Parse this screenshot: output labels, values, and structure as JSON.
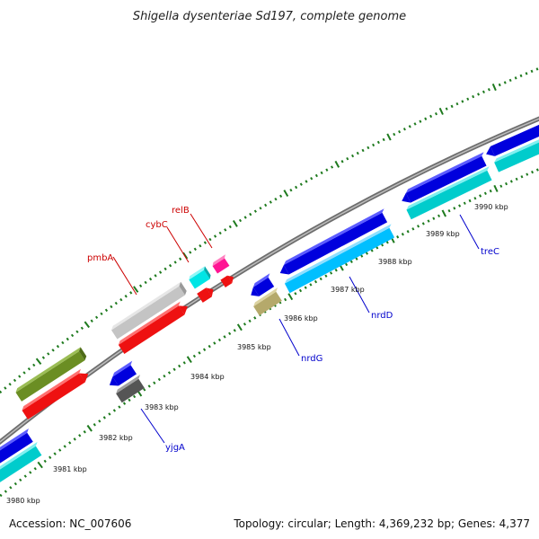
{
  "title": "Shigella dysenteriae Sd197, complete genome",
  "footer": {
    "accession": "Accession: NC_007606",
    "summary": "Topology: circular; Length: 4,369,232 bp; Genes: 4,377"
  },
  "colors": {
    "backbone": "#8c8c8c",
    "ticks": "#1e7a1e",
    "label_forward": "#cc0000",
    "label_reverse": "#0000cc"
  },
  "kbp_ticks": [
    "3980 kbp",
    "3981 kbp",
    "3982 kbp",
    "3983 kbp",
    "3984 kbp",
    "3985 kbp",
    "3986 kbp",
    "3987 kbp",
    "3988 kbp",
    "3989 kbp",
    "3990 kbp"
  ],
  "gene_labels": [
    {
      "name": "pmbA",
      "strand": "forward"
    },
    {
      "name": "cybC",
      "strand": "forward"
    },
    {
      "name": "relB",
      "strand": "forward"
    },
    {
      "name": "yjgA",
      "strand": "reverse"
    },
    {
      "name": "nrdG",
      "strand": "reverse"
    },
    {
      "name": "nrdD",
      "strand": "reverse"
    },
    {
      "name": "treC",
      "strand": "reverse"
    }
  ]
}
